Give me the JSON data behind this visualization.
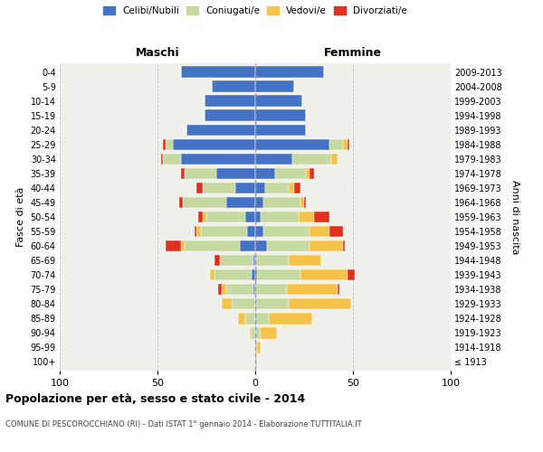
{
  "age_groups": [
    "100+",
    "95-99",
    "90-94",
    "85-89",
    "80-84",
    "75-79",
    "70-74",
    "65-69",
    "60-64",
    "55-59",
    "50-54",
    "45-49",
    "40-44",
    "35-39",
    "30-34",
    "25-29",
    "20-24",
    "15-19",
    "10-14",
    "5-9",
    "0-4"
  ],
  "birth_years": [
    "≤ 1913",
    "1914-1918",
    "1919-1923",
    "1924-1928",
    "1929-1933",
    "1934-1938",
    "1939-1943",
    "1944-1948",
    "1949-1953",
    "1954-1958",
    "1959-1963",
    "1964-1968",
    "1969-1973",
    "1974-1978",
    "1979-1983",
    "1984-1988",
    "1989-1993",
    "1994-1998",
    "1999-2003",
    "2004-2008",
    "2009-2013"
  ],
  "males": {
    "celibi": [
      0,
      0,
      0,
      0,
      0,
      1,
      2,
      1,
      8,
      4,
      5,
      15,
      10,
      20,
      38,
      42,
      35,
      26,
      26,
      22,
      38
    ],
    "coniugati": [
      0,
      0,
      2,
      5,
      12,
      14,
      19,
      17,
      28,
      24,
      20,
      22,
      17,
      16,
      9,
      4,
      0,
      0,
      0,
      0,
      0
    ],
    "vedovi": [
      0,
      0,
      1,
      4,
      5,
      2,
      2,
      0,
      2,
      2,
      2,
      0,
      0,
      0,
      0,
      0,
      0,
      0,
      0,
      0,
      0
    ],
    "divorziati": [
      0,
      0,
      0,
      0,
      0,
      2,
      0,
      3,
      8,
      1,
      2,
      2,
      3,
      2,
      1,
      1,
      0,
      0,
      0,
      0,
      0
    ]
  },
  "females": {
    "nubili": [
      0,
      0,
      0,
      0,
      0,
      0,
      1,
      0,
      6,
      4,
      3,
      4,
      5,
      10,
      19,
      38,
      26,
      26,
      24,
      20,
      35
    ],
    "coniugate": [
      0,
      1,
      3,
      7,
      17,
      16,
      22,
      17,
      22,
      24,
      19,
      19,
      12,
      16,
      20,
      7,
      0,
      0,
      0,
      0,
      0
    ],
    "vedove": [
      1,
      2,
      8,
      22,
      32,
      26,
      24,
      17,
      17,
      10,
      8,
      2,
      3,
      2,
      3,
      2,
      0,
      0,
      0,
      0,
      0
    ],
    "divorziate": [
      0,
      0,
      0,
      0,
      0,
      1,
      4,
      0,
      1,
      7,
      8,
      1,
      3,
      2,
      0,
      1,
      0,
      0,
      0,
      0,
      0
    ]
  },
  "colors": {
    "celibi": "#4472C4",
    "coniugati": "#c5d9a0",
    "vedovi": "#f5c34a",
    "divorziati": "#e03020"
  },
  "title": "Popolazione per età, sesso e stato civile - 2014",
  "subtitle": "COMUNE DI PESCOROCCHIANO (RI) - Dati ISTAT 1° gennaio 2014 - Elaborazione TUTTITALIA.IT",
  "xlabel_left": "Maschi",
  "xlabel_right": "Femmine",
  "ylabel_left": "Fasce di età",
  "ylabel_right": "Anni di nascita",
  "xlim": 100,
  "legend_labels": [
    "Celibi/Nubili",
    "Coniugati/e",
    "Vedovi/e",
    "Divorziati/e"
  ],
  "background_color": "#f0f0eb"
}
